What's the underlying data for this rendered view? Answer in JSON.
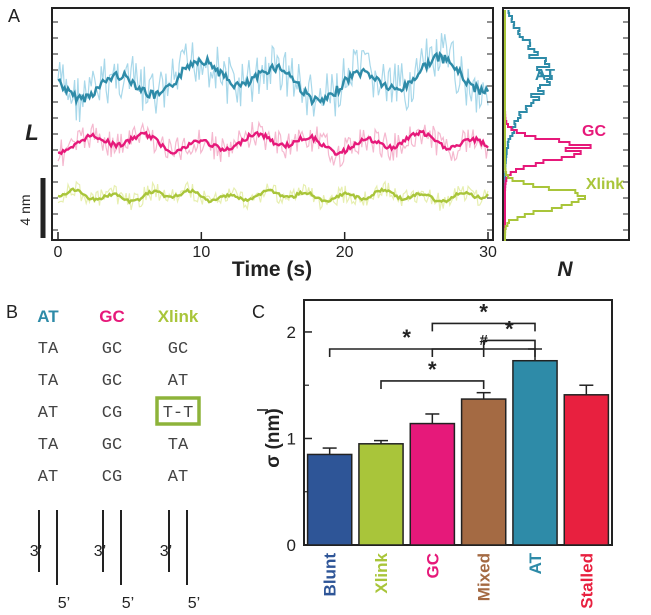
{
  "colors": {
    "AT": "#2e8ba8",
    "AT_light": "#a8d8ea",
    "GC": "#e6197a",
    "GC_light": "#f5b8cf",
    "Xlink": "#a9c53a",
    "Xlink_light": "#e7efb0",
    "Blunt": "#2e5597",
    "Mixed": "#a46a43",
    "Stalled": "#e8203f",
    "box": "#8db33a"
  },
  "panelA": {
    "label": "A",
    "ylabel": "L",
    "xlabel": "Time (s)",
    "scale_bar": "4 nm",
    "xticks": [
      "0",
      "10",
      "20",
      "30"
    ],
    "hist_xlabel": "N",
    "series": [
      {
        "name": "AT",
        "color_key": "AT"
      },
      {
        "name": "GC",
        "color_key": "GC"
      },
      {
        "name": "Xlink",
        "color_key": "Xlink"
      }
    ]
  },
  "panelB": {
    "label": "B",
    "columns": [
      {
        "header": "AT",
        "color_key": "AT",
        "pairs": [
          "TA",
          "TA",
          "AT",
          "TA",
          "AT"
        ],
        "end3": "3’",
        "end5": "5’"
      },
      {
        "header": "GC",
        "color_key": "GC",
        "pairs": [
          "GC",
          "GC",
          "CG",
          "GC",
          "CG"
        ],
        "end3": "3’",
        "end5": "5’"
      },
      {
        "header": "Xlink",
        "color_key": "Xlink",
        "pairs": [
          "GC",
          "AT",
          "T-T",
          "TA",
          "AT"
        ],
        "end3": "3’",
        "end5": "5’",
        "boxed_index": 2
      }
    ]
  },
  "chart_data": {
    "type": "bar",
    "panel_label": "C",
    "ylabel": "σ (nm)",
    "ylim": [
      0,
      2.3
    ],
    "yticks": [
      "0",
      "1",
      "2"
    ],
    "categories": [
      "Blunt",
      "Xlink",
      "GC",
      "Mixed",
      "AT",
      "Stalled"
    ],
    "values": [
      0.85,
      0.95,
      1.14,
      1.37,
      1.73,
      1.41
    ],
    "errors": [
      0.06,
      0.03,
      0.09,
      0.06,
      0.11,
      0.09
    ],
    "bar_color_keys": [
      "Blunt",
      "Xlink",
      "GC",
      "Mixed",
      "AT",
      "Stalled"
    ],
    "significance": [
      {
        "from": 0,
        "to": 3,
        "marker": "*",
        "y_left": 1.73,
        "y_top": 1.84
      },
      {
        "from": 1,
        "to": 3,
        "marker": "*",
        "y_left": 1.45,
        "y_top": 1.54
      },
      {
        "from": 2,
        "to": 4,
        "marker": "#",
        "y_left": 1.66,
        "y_top": 1.84
      },
      {
        "from": 2,
        "to": 4,
        "marker": "*",
        "y_left": 2.0,
        "y_top": 2.08
      },
      {
        "from": 3,
        "to": 4,
        "marker": "*",
        "y_left": 1.77,
        "y_top": 1.92
      }
    ]
  }
}
